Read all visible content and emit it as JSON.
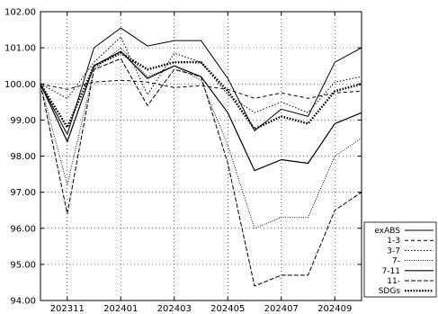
{
  "chart_data": {
    "type": "line",
    "title": "",
    "xlabel": "",
    "ylabel": "",
    "x": [
      "202310",
      "202311",
      "202312",
      "202401",
      "202402",
      "202403",
      "202404",
      "202405",
      "202406",
      "202407",
      "202408",
      "202409",
      "202410"
    ],
    "x_tick_labels": [
      "202311",
      "202401",
      "202403",
      "202405",
      "202407",
      "202409"
    ],
    "ylim": [
      94.0,
      102.0
    ],
    "y_tick_labels": [
      "94.00",
      "95.00",
      "96.00",
      "97.00",
      "98.00",
      "99.00",
      "100.00",
      "101.00",
      "102.00"
    ],
    "grid": true,
    "legend_position": "bottom-right-outside",
    "series": [
      {
        "name": "exABS",
        "style": "solid-thin",
        "values": [
          100.0,
          98.6,
          101.0,
          101.55,
          101.05,
          101.2,
          101.2,
          100.15,
          98.7,
          99.3,
          99.1,
          100.6,
          101.0
        ]
      },
      {
        "name": "1-3",
        "style": "dashed",
        "values": [
          100.0,
          99.85,
          100.05,
          100.1,
          100.05,
          99.9,
          99.95,
          99.85,
          99.6,
          99.75,
          99.6,
          99.75,
          99.8
        ]
      },
      {
        "name": "3-7",
        "style": "dotted",
        "values": [
          100.0,
          99.6,
          100.6,
          101.3,
          99.7,
          100.85,
          100.6,
          99.7,
          99.2,
          99.5,
          99.2,
          100.05,
          100.2
        ]
      },
      {
        "name": "7-",
        "style": "dotted-fine",
        "values": [
          100.0,
          97.2,
          100.4,
          101.0,
          100.2,
          100.5,
          100.1,
          98.3,
          96.0,
          96.3,
          96.3,
          98.0,
          98.5
        ]
      },
      {
        "name": "7-11",
        "style": "solid",
        "values": [
          100.0,
          98.4,
          100.5,
          100.9,
          100.15,
          100.5,
          100.2,
          99.2,
          97.6,
          97.9,
          97.8,
          98.9,
          99.2
        ]
      },
      {
        "name": "11-",
        "style": "dashed-long",
        "values": [
          100.0,
          96.4,
          100.4,
          100.7,
          99.4,
          100.4,
          100.2,
          97.8,
          94.4,
          94.7,
          94.7,
          96.5,
          97.0
        ]
      },
      {
        "name": "SDGs",
        "style": "thick-dotted",
        "values": [
          100.0,
          98.8,
          100.5,
          100.85,
          100.4,
          100.6,
          100.6,
          99.8,
          98.75,
          99.1,
          98.9,
          99.8,
          100.0
        ]
      }
    ]
  }
}
